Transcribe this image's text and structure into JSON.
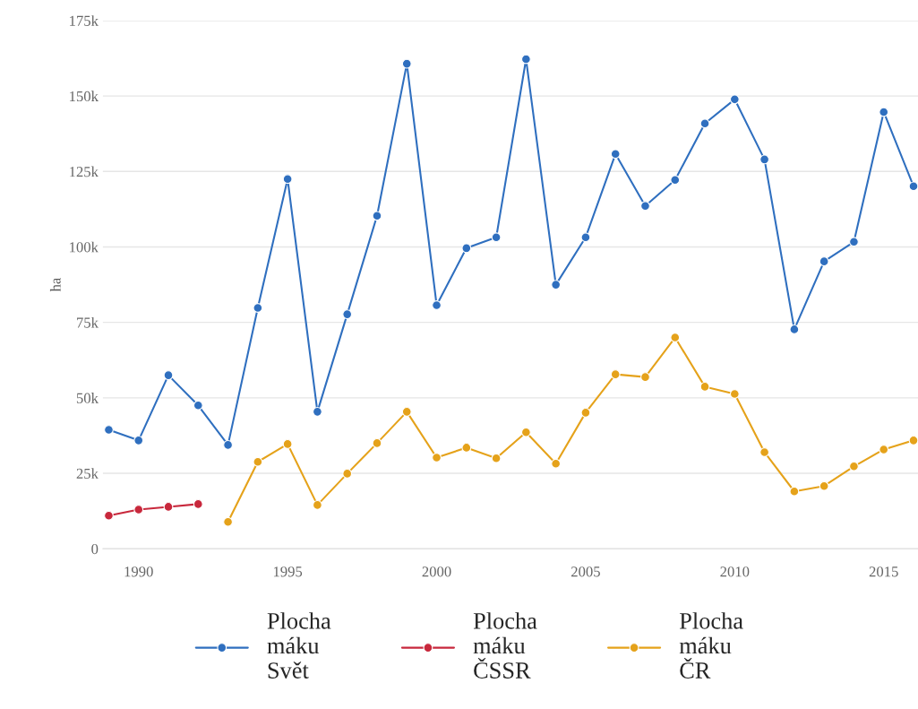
{
  "chart_data": {
    "type": "line",
    "ylabel": "ha",
    "xlim": [
      1988.8,
      2016.15
    ],
    "xticks": [
      1990,
      1995,
      2000,
      2005,
      2010,
      2015
    ],
    "ylim": [
      0,
      175000
    ],
    "yticks": [
      {
        "value": 0,
        "label": "0"
      },
      {
        "value": 25000,
        "label": "25k"
      },
      {
        "value": 50000,
        "label": "50k"
      },
      {
        "value": 75000,
        "label": "75k"
      },
      {
        "value": 100000,
        "label": "100k"
      },
      {
        "value": 125000,
        "label": "125k"
      },
      {
        "value": 150000,
        "label": "150k"
      },
      {
        "value": 175000,
        "label": "175k"
      }
    ],
    "grid": "y",
    "legend": "bottom",
    "marker": "circle",
    "line_style": "solid",
    "series": [
      {
        "name": "Plocha máku Svět",
        "color": "#2f6fbf",
        "x": [
          1989,
          1990,
          1991,
          1992,
          1993,
          1994,
          1995,
          1996,
          1997,
          1998,
          1999,
          2000,
          2001,
          2002,
          2003,
          2004,
          2005,
          2006,
          2007,
          2008,
          2009,
          2010,
          2011,
          2012,
          2013,
          2014,
          2015,
          2016
        ],
        "values": [
          39400,
          35900,
          57500,
          47500,
          34400,
          79800,
          122500,
          45400,
          77700,
          110300,
          160700,
          80700,
          99600,
          103200,
          162200,
          87500,
          103200,
          130800,
          113600,
          122200,
          140900,
          148900,
          129000,
          72700,
          95200,
          101700,
          144700,
          120100
        ]
      },
      {
        "name": "Plocha máku ČSSR",
        "color": "#c8283c",
        "x": [
          1989,
          1990,
          1991,
          1992
        ],
        "values": [
          11000,
          13000,
          13900,
          14800
        ]
      },
      {
        "name": "Plocha máku ČR",
        "color": "#e5a21a",
        "x": [
          1993,
          1994,
          1995,
          1996,
          1997,
          1998,
          1999,
          2000,
          2001,
          2002,
          2003,
          2004,
          2005,
          2006,
          2007,
          2008,
          2009,
          2010,
          2011,
          2012,
          2013,
          2014,
          2015,
          2016
        ],
        "values": [
          8900,
          28800,
          34700,
          14500,
          24900,
          35000,
          45400,
          30200,
          33500,
          30000,
          38600,
          28200,
          45100,
          57800,
          56900,
          70000,
          53700,
          51300,
          32000,
          19000,
          20800,
          27300,
          32900,
          35900
        ]
      }
    ]
  }
}
